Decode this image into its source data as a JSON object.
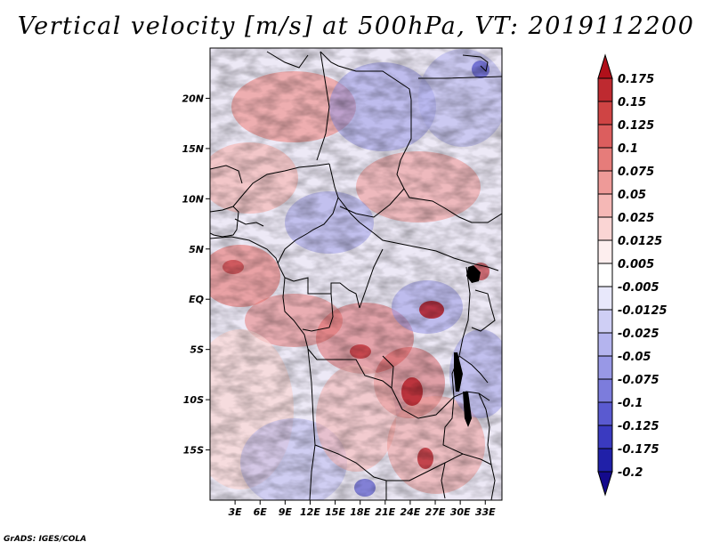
{
  "title": "Vertical velocity [m/s] at 500hPa, VT: 2019112200",
  "credit": "GrADS: IGES/COLA",
  "map": {
    "lon_range": [
      0,
      35
    ],
    "lat_range": [
      -20,
      25
    ],
    "lat_labels": [
      {
        "label": "20N",
        "lat": 20
      },
      {
        "label": "15N",
        "lat": 15
      },
      {
        "label": "10N",
        "lat": 10
      },
      {
        "label": "5N",
        "lat": 5
      },
      {
        "label": "EQ",
        "lat": 0
      },
      {
        "label": "5S",
        "lat": -5
      },
      {
        "label": "10S",
        "lat": -10
      },
      {
        "label": "15S",
        "lat": -15
      }
    ],
    "lon_labels": [
      {
        "label": "3E",
        "lon": 3
      },
      {
        "label": "6E",
        "lon": 6
      },
      {
        "label": "9E",
        "lon": 9
      },
      {
        "label": "12E",
        "lon": 12
      },
      {
        "label": "15E",
        "lon": 15
      },
      {
        "label": "18E",
        "lon": 18
      },
      {
        "label": "21E",
        "lon": 21
      },
      {
        "label": "24E",
        "lon": 24
      },
      {
        "label": "27E",
        "lon": 27
      },
      {
        "label": "30E",
        "lon": 30
      },
      {
        "label": "33E",
        "lon": 33
      }
    ]
  },
  "colorbar": {
    "levels": [
      "0.175",
      "0.15",
      "0.125",
      "0.1",
      "0.075",
      "0.05",
      "0.025",
      "0.0125",
      "0.005",
      "-0.005",
      "-0.0125",
      "-0.025",
      "-0.05",
      "-0.075",
      "-0.1",
      "-0.125",
      "-0.175",
      "-0.2"
    ],
    "colors": [
      "#b0101a",
      "#be2a30",
      "#cf4444",
      "#dc5e5e",
      "#e67c7a",
      "#ee9a98",
      "#f5b8b6",
      "#fad5d4",
      "#fdeeee",
      "#ffffff",
      "#e8e8fb",
      "#cfcff5",
      "#b4b4ee",
      "#9898e6",
      "#7c7cdc",
      "#5a5ad0",
      "#3a3ac0",
      "#2020a8",
      "#140a8c"
    ]
  }
}
